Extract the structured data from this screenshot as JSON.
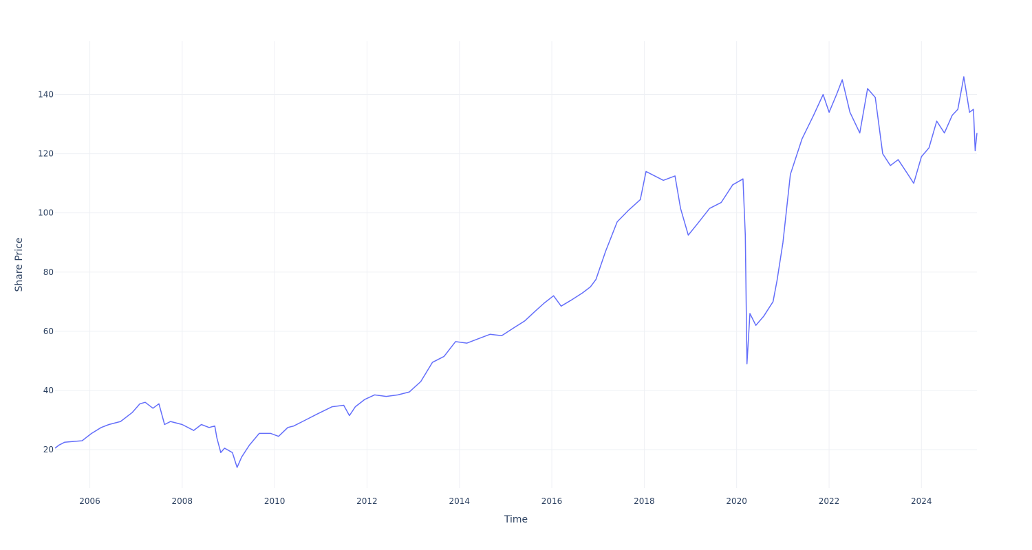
{
  "chart_data": {
    "type": "line",
    "title": "",
    "xlabel": "Time",
    "ylabel": "Share Price",
    "x_ticks": [
      "2006",
      "2008",
      "2010",
      "2012",
      "2014",
      "2016",
      "2018",
      "2020",
      "2022",
      "2024"
    ],
    "y_ticks": [
      "20",
      "40",
      "60",
      "80",
      "100",
      "120",
      "140"
    ],
    "xlim": [
      "2005-04-01",
      "2025-03-15"
    ],
    "ylim": [
      7,
      158
    ],
    "grid": true,
    "line_color": "#636efa",
    "series": [
      {
        "x": [
          "2005-04-01",
          "2005-05-01",
          "2005-06-15",
          "2005-09-01",
          "2005-11-01",
          "2006-01-15",
          "2006-04-01",
          "2006-06-01",
          "2006-09-01",
          "2006-12-01",
          "2007-02-01",
          "2007-03-15",
          "2007-05-15",
          "2007-07-01",
          "2007-08-15",
          "2007-10-01",
          "2008-01-01",
          "2008-04-01",
          "2008-06-01",
          "2008-08-01",
          "2008-09-15",
          "2008-10-01",
          "2008-11-01",
          "2008-12-01",
          "2009-02-01",
          "2009-03-10",
          "2009-04-15",
          "2009-06-15",
          "2009-09-01",
          "2009-12-01",
          "2010-02-01",
          "2010-04-15",
          "2010-06-01",
          "2010-09-01",
          "2010-12-01",
          "2011-04-01",
          "2011-07-01",
          "2011-08-15",
          "2011-10-01",
          "2011-12-15",
          "2012-03-01",
          "2012-06-01",
          "2012-09-01",
          "2012-12-01",
          "2013-03-01",
          "2013-06-01",
          "2013-09-01",
          "2013-12-01",
          "2014-03-01",
          "2014-06-01",
          "2014-09-01",
          "2014-12-01",
          "2015-03-01",
          "2015-06-01",
          "2015-08-15",
          "2015-11-01",
          "2016-01-15",
          "2016-03-15",
          "2016-06-01",
          "2016-09-01",
          "2016-11-01",
          "2016-12-15",
          "2017-03-01",
          "2017-06-01",
          "2017-09-01",
          "2017-12-01",
          "2018-01-15",
          "2018-03-01",
          "2018-06-01",
          "2018-09-01",
          "2018-10-15",
          "2018-12-15",
          "2019-03-01",
          "2019-06-01",
          "2019-09-01",
          "2019-12-01",
          "2020-02-01",
          "2020-02-20",
          "2020-03-10",
          "2020-03-23",
          "2020-04-15",
          "2020-06-01",
          "2020-08-01",
          "2020-10-15",
          "2020-11-15",
          "2021-01-01",
          "2021-03-01",
          "2021-06-01",
          "2021-09-01",
          "2021-11-15",
          "2022-01-01",
          "2022-03-01",
          "2022-04-15",
          "2022-06-15",
          "2022-09-01",
          "2022-11-01",
          "2023-01-01",
          "2023-03-01",
          "2023-05-01",
          "2023-07-01",
          "2023-09-01",
          "2023-11-01",
          "2024-01-01",
          "2024-03-01",
          "2024-05-01",
          "2024-07-01",
          "2024-09-01",
          "2024-10-15",
          "2024-12-01",
          "2025-01-15",
          "2025-02-15",
          "2025-03-01",
          "2025-03-15"
        ],
        "y": [
          20.5,
          21.5,
          22.5,
          22.8,
          23.0,
          25.5,
          27.5,
          28.5,
          29.5,
          32.5,
          35.5,
          36,
          34,
          35.5,
          28.5,
          29.5,
          28.5,
          26.5,
          28.5,
          27.5,
          28.0,
          24.0,
          19.0,
          20.5,
          19.0,
          14.0,
          17.5,
          21.5,
          25.5,
          25.5,
          24.5,
          27.5,
          28.0,
          30.0,
          32.0,
          34.5,
          35.0,
          31.5,
          34.5,
          37.0,
          38.5,
          38.0,
          38.5,
          39.5,
          43.0,
          49.5,
          51.5,
          56.5,
          56.0,
          57.5,
          59.0,
          58.5,
          61.0,
          63.5,
          66.5,
          69.5,
          72.0,
          68.5,
          70.5,
          73.0,
          75.0,
          77.5,
          87.0,
          97.0,
          101.0,
          104.5,
          114.0,
          113.0,
          111.0,
          112.5,
          101.5,
          92.5,
          96.5,
          101.5,
          103.5,
          109.5,
          111.0,
          111.5,
          92.5,
          49.0,
          66.0,
          62.0,
          65.0,
          70.0,
          77.0,
          90.0,
          113.0,
          125.0,
          133.0,
          140.0,
          134.0,
          140.0,
          145.0,
          134.0,
          127.0,
          142.0,
          139.0,
          120.0,
          116.0,
          118.0,
          114.0,
          110.0,
          119.0,
          122.0,
          131.0,
          127.0,
          133.0,
          135.0,
          146.0,
          134.0,
          135.0,
          121.0,
          127.0
        ]
      }
    ]
  }
}
